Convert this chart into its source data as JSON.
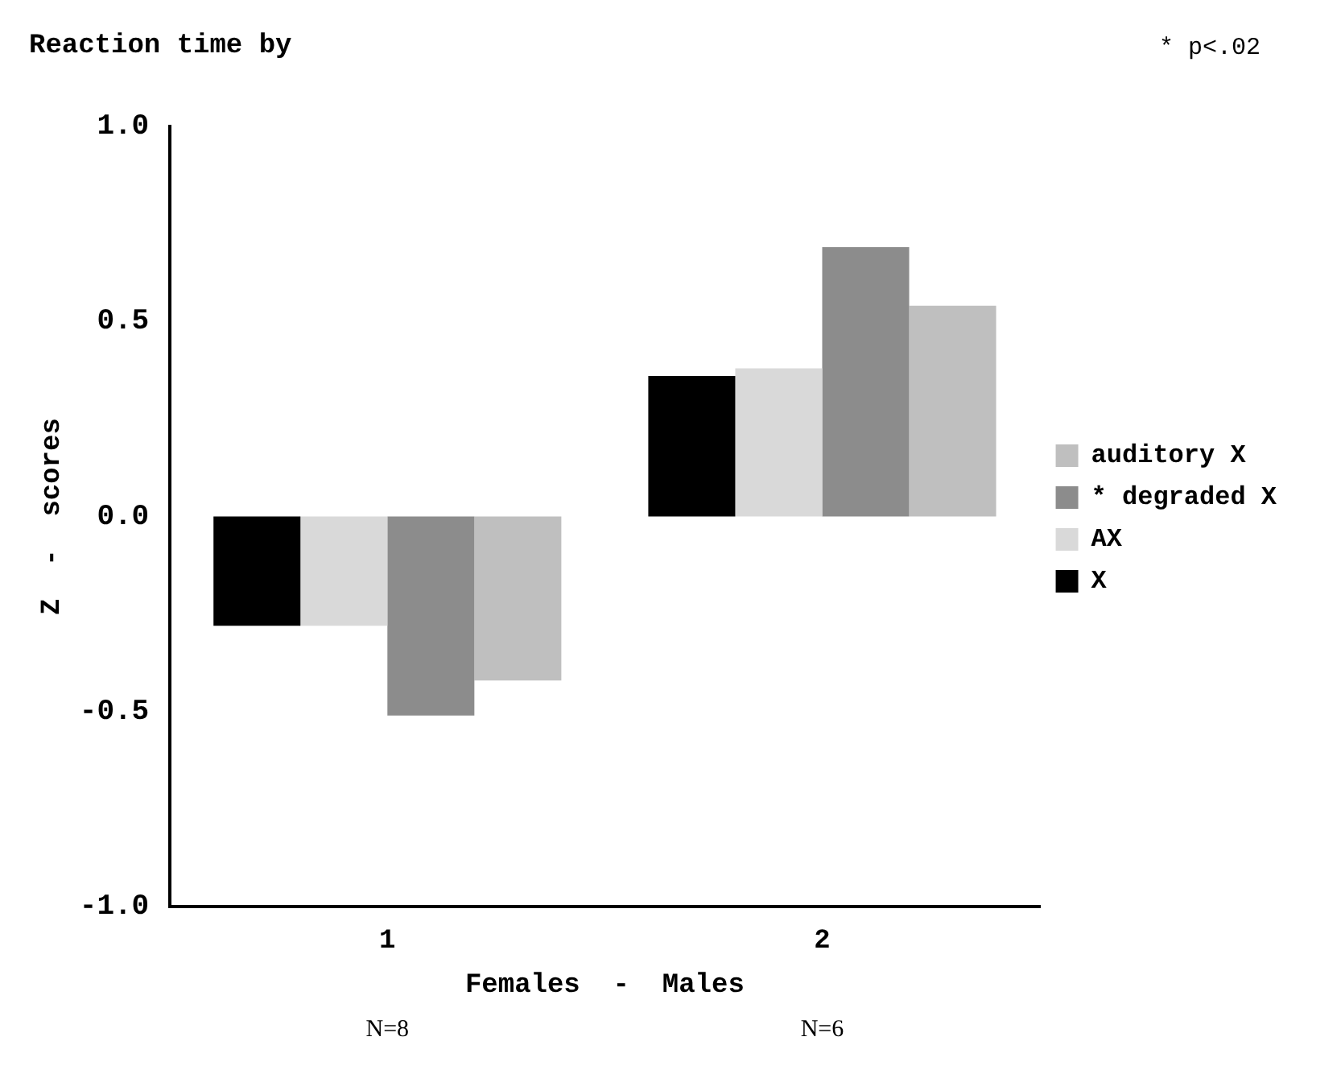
{
  "chart_data": {
    "type": "bar",
    "title": "Reaction time by",
    "xlabel": "Females  -  Males",
    "ylabel": "Z  -  scores",
    "categories": [
      "1",
      "2"
    ],
    "series": [
      {
        "name": "X",
        "color": "#000000",
        "values": [
          -0.28,
          0.36
        ]
      },
      {
        "name": "AX",
        "color": "#d9d9d9",
        "values": [
          -0.28,
          0.38
        ]
      },
      {
        "name": "* degraded X",
        "color": "#8c8c8c",
        "values": [
          -0.51,
          0.69
        ]
      },
      {
        "name": "auditory X",
        "color": "#bfbfbf",
        "values": [
          -0.42,
          0.54
        ]
      }
    ],
    "ylim": [
      -1,
      1
    ],
    "yticks": [
      {
        "value": -1,
        "label": "-1.0"
      },
      {
        "value": -0.5,
        "label": "-0.5"
      },
      {
        "value": 0,
        "label": "0.0"
      },
      {
        "value": 0.5,
        "label": "0.5"
      },
      {
        "value": 1,
        "label": "1.0"
      }
    ],
    "grid": false,
    "legend": "right",
    "annotations": [
      "* p<.02",
      "N=8",
      "N=6"
    ]
  }
}
